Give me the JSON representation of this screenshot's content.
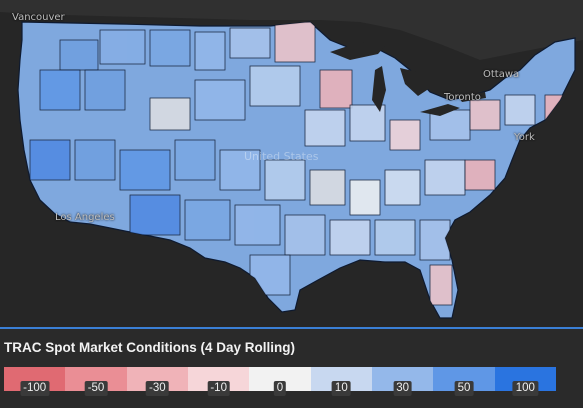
{
  "map": {
    "cities": [
      {
        "name": "Vancouver"
      },
      {
        "name": "Ottawa"
      },
      {
        "name": "Toronto"
      },
      {
        "name": "York"
      },
      {
        "name": "Los Angeles"
      }
    ],
    "watermark": "United States",
    "colors": {
      "land_base": "#7fa8de",
      "water": "#262626",
      "borders": "#0e1a30",
      "neutral": "#e0e0e2"
    }
  },
  "legend": {
    "title": "TRAC Spot Market Conditions (4 Day Rolling)",
    "ticks": [
      "-100",
      "-50",
      "-30",
      "-10",
      "0",
      "10",
      "30",
      "50",
      "100"
    ],
    "colors": [
      "#e06a72",
      "#ea8e95",
      "#f0b3b8",
      "#f6d6d9",
      "#f2f2f2",
      "#c8d8f0",
      "#94b8ea",
      "#5f97e6",
      "#2a74e0"
    ],
    "accent": "#3a7fd6"
  }
}
